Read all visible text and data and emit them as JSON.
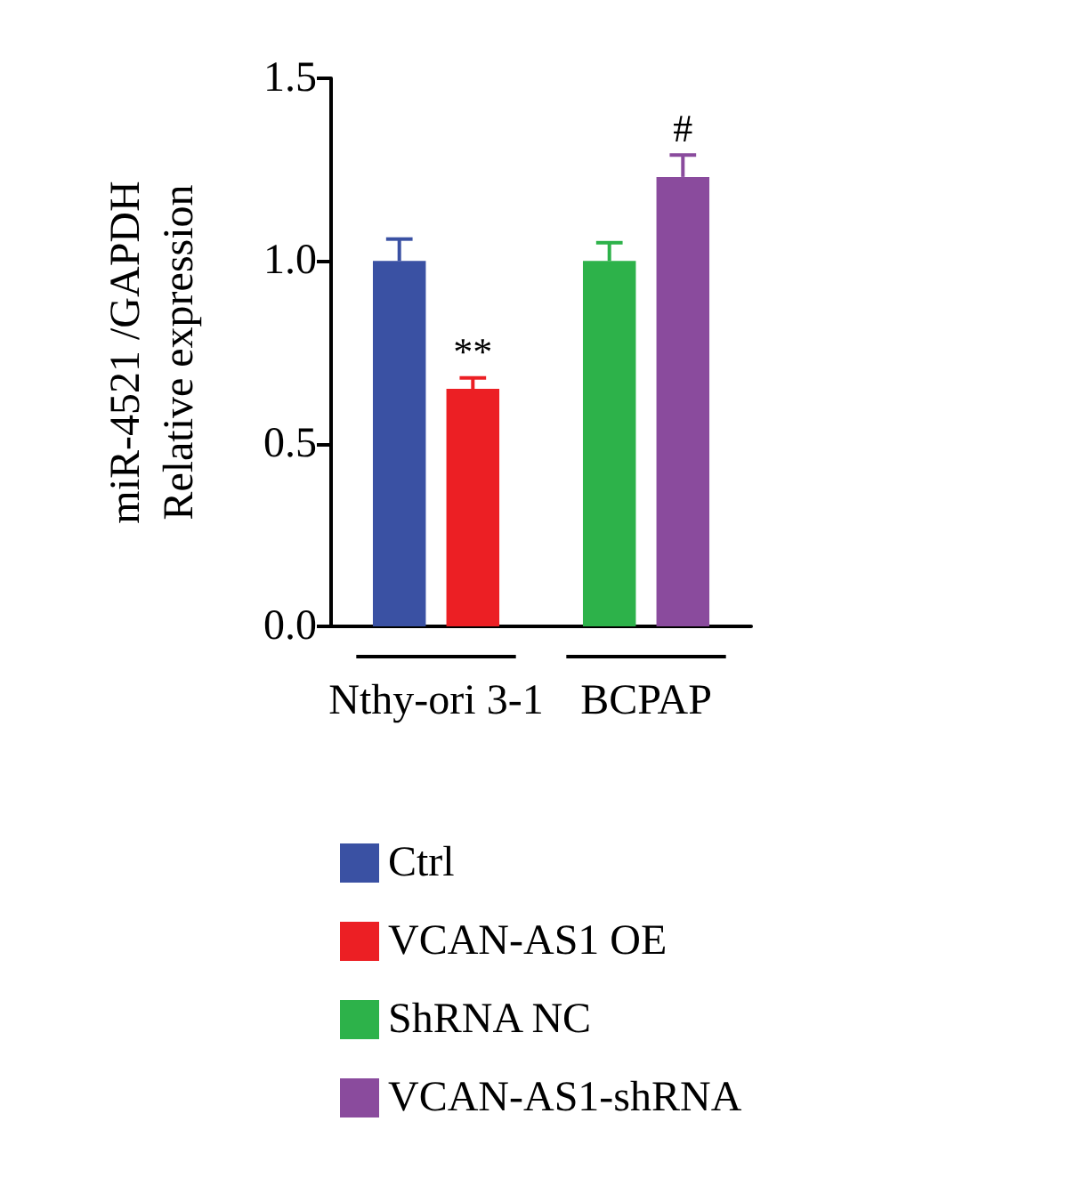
{
  "chart_data": {
    "type": "bar",
    "ylabel": "miR-4521 /GAPDH\nRelative expression",
    "categories": [
      "Nthy-ori 3-1",
      "BCPAP"
    ],
    "series": [
      {
        "name": "Ctrl",
        "color": "#3a51a3",
        "values": [
          1.0,
          null
        ],
        "errors": [
          0.06,
          null
        ]
      },
      {
        "name": "VCAN-AS1 OE",
        "color": "#ec1f24",
        "values": [
          0.65,
          null
        ],
        "errors": [
          0.03,
          null
        ],
        "value_labels": [
          "**",
          null
        ]
      },
      {
        "name": "ShRNA NC",
        "color": "#2db24a",
        "values": [
          null,
          1.0
        ],
        "errors": [
          null,
          0.05
        ]
      },
      {
        "name": "VCAN-AS1-shRNA",
        "color": "#8a4b9d",
        "values": [
          null,
          1.23
        ],
        "errors": [
          null,
          0.06
        ],
        "value_labels": [
          null,
          "#"
        ]
      }
    ],
    "ylim": [
      0,
      1.5
    ],
    "yticks": [
      {
        "value": 0,
        "label": "0.0"
      },
      {
        "value": 0.5,
        "label": "0.5"
      },
      {
        "value": 1,
        "label": "1.0"
      },
      {
        "value": 1.5,
        "label": "1.5"
      }
    ],
    "grid": false,
    "legend": "bottom"
  }
}
